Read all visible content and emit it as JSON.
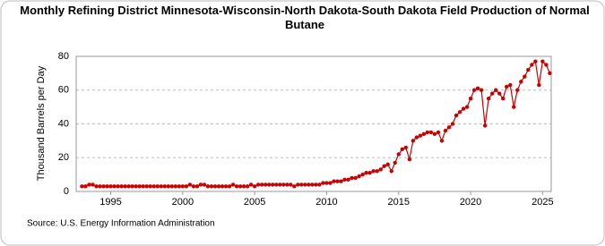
{
  "chart_data": {
    "type": "line",
    "title": "Monthly Refining District Minnesota-Wisconsin-North Dakota-South Dakota Field Production of Normal Butane",
    "y_label": "Thousand Barrels per Day",
    "source": "Source: U.S. Energy Information Administration",
    "color": "#cc0000",
    "grid": true,
    "xlim": [
      1992.6,
      2025.6
    ],
    "xticks": [
      1995,
      2000,
      2005,
      2010,
      2015,
      2020,
      2025
    ],
    "ylim": [
      0,
      80
    ],
    "yticks": [
      0,
      20,
      40,
      60,
      80
    ],
    "x": [
      1993,
      1993.25,
      1993.5,
      1993.75,
      1994,
      1994.25,
      1994.5,
      1994.75,
      1995,
      1995.25,
      1995.5,
      1995.75,
      1996,
      1996.25,
      1996.5,
      1996.75,
      1997,
      1997.25,
      1997.5,
      1997.75,
      1998,
      1998.25,
      1998.5,
      1998.75,
      1999,
      1999.25,
      1999.5,
      1999.75,
      2000,
      2000.25,
      2000.5,
      2000.75,
      2001,
      2001.25,
      2001.5,
      2001.75,
      2002,
      2002.25,
      2002.5,
      2002.75,
      2003,
      2003.25,
      2003.5,
      2003.75,
      2004,
      2004.25,
      2004.5,
      2004.75,
      2005,
      2005.25,
      2005.5,
      2005.75,
      2006,
      2006.25,
      2006.5,
      2006.75,
      2007,
      2007.25,
      2007.5,
      2007.75,
      2008,
      2008.25,
      2008.5,
      2008.75,
      2009,
      2009.25,
      2009.5,
      2009.75,
      2010,
      2010.25,
      2010.5,
      2010.75,
      2011,
      2011.25,
      2011.5,
      2011.75,
      2012,
      2012.25,
      2012.5,
      2012.75,
      2013,
      2013.25,
      2013.5,
      2013.75,
      2014,
      2014.25,
      2014.5,
      2014.75,
      2015,
      2015.25,
      2015.5,
      2015.75,
      2016,
      2016.25,
      2016.5,
      2016.75,
      2017,
      2017.25,
      2017.5,
      2017.75,
      2018,
      2018.25,
      2018.5,
      2018.75,
      2019,
      2019.25,
      2019.5,
      2019.75,
      2020,
      2020.25,
      2020.5,
      2020.75,
      2021,
      2021.25,
      2021.5,
      2021.75,
      2022,
      2022.25,
      2022.5,
      2022.75,
      2023,
      2023.25,
      2023.5,
      2023.75,
      2024,
      2024.25,
      2024.5,
      2024.75,
      2025,
      2025.25,
      2025.5
    ],
    "values": [
      3,
      3,
      4,
      4,
      3,
      3,
      3,
      3,
      3,
      3,
      3,
      3,
      3,
      3,
      3,
      3,
      3,
      3,
      3,
      3,
      3,
      3,
      3,
      3,
      3,
      3,
      3,
      3,
      3,
      3,
      4,
      3,
      3,
      4,
      4,
      3,
      3,
      3,
      3,
      3,
      3,
      3,
      4,
      3,
      3,
      3,
      3,
      4,
      3,
      4,
      4,
      4,
      4,
      4,
      4,
      4,
      4,
      4,
      4,
      3,
      4,
      4,
      4,
      4,
      4,
      4,
      4,
      5,
      5,
      5,
      6,
      6,
      6,
      7,
      7,
      8,
      8,
      9,
      10,
      11,
      11,
      12,
      12,
      13,
      15,
      16,
      12,
      17,
      22,
      25,
      26,
      19,
      30,
      32,
      33,
      34,
      35,
      35,
      34,
      35,
      30,
      36,
      38,
      40,
      45,
      47,
      49,
      50,
      55,
      60,
      61,
      60,
      39,
      55,
      58,
      60,
      58,
      55,
      62,
      63,
      50,
      60,
      65,
      68,
      72,
      75,
      77,
      63,
      77,
      75,
      70
    ]
  }
}
